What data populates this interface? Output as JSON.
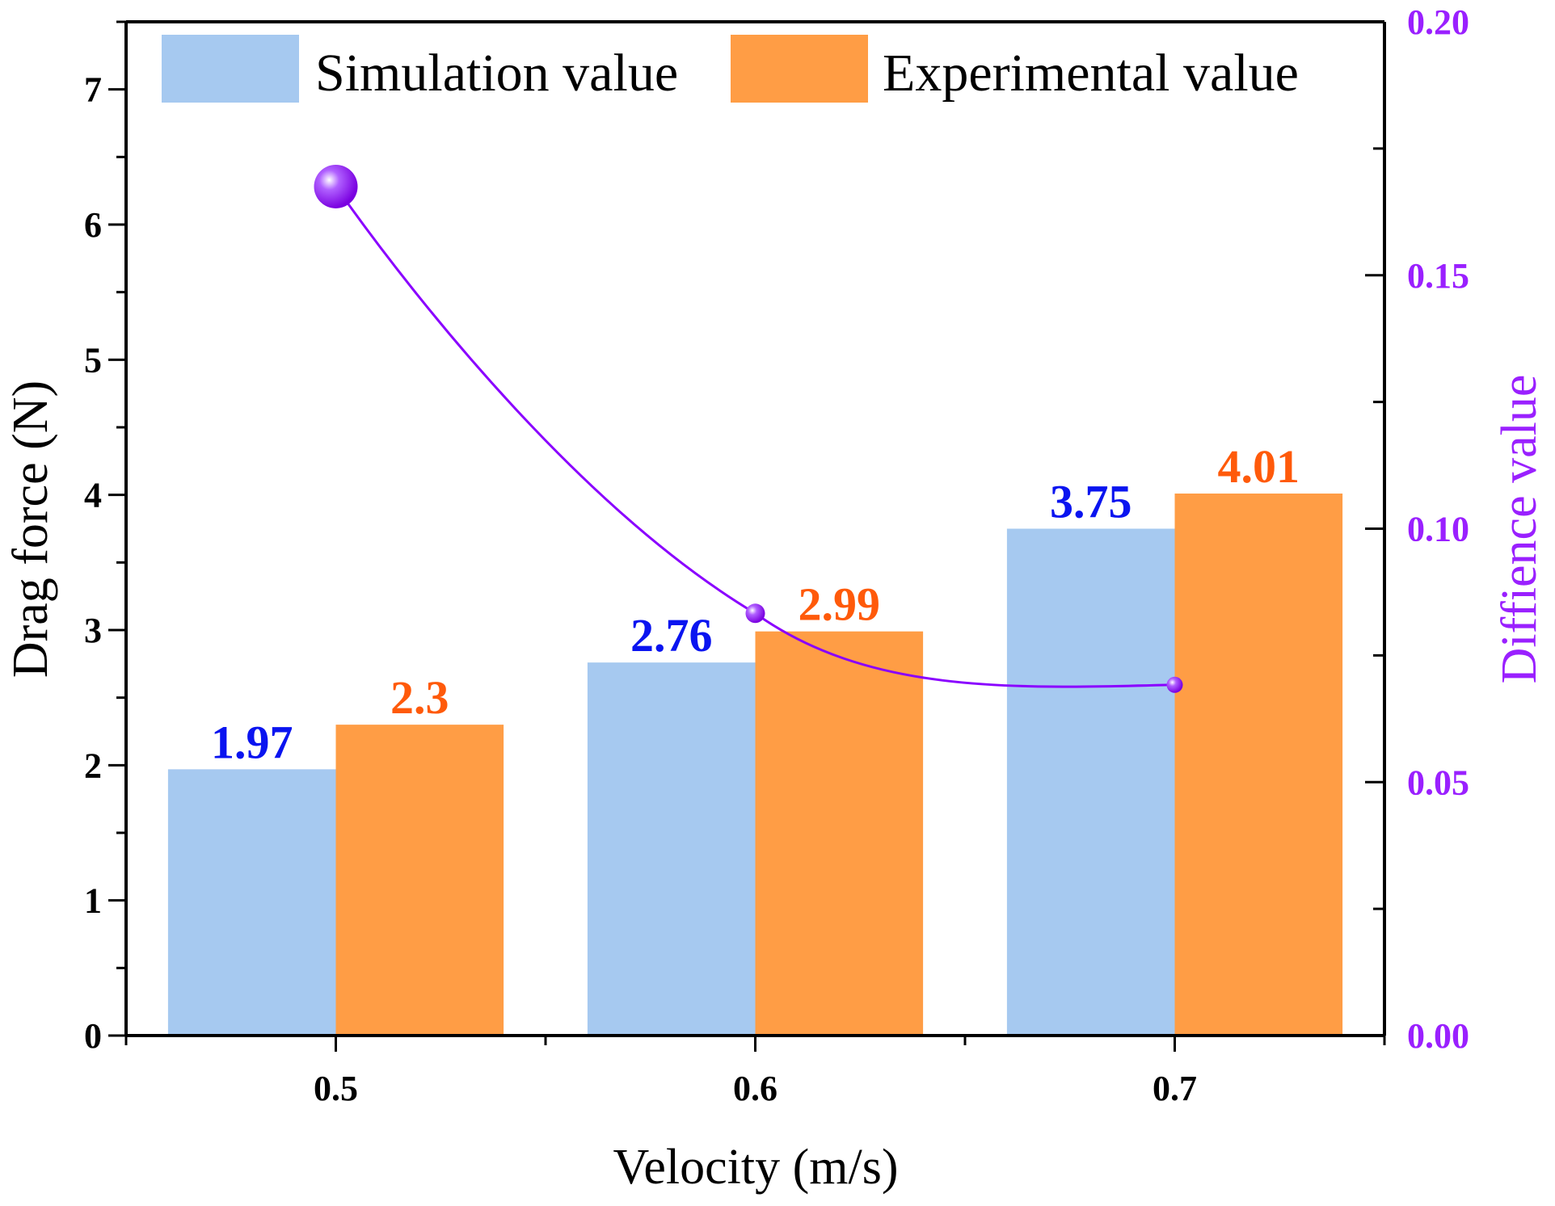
{
  "chart_data": {
    "type": "bar",
    "title": "",
    "xlabel": "Velocity (m/s)",
    "ylabel": "Drag force (N)",
    "y2label": "Diffience value",
    "categories": [
      "0.5",
      "0.6",
      "0.7"
    ],
    "x": [
      0.5,
      0.6,
      0.7
    ],
    "xlim": [
      0.45,
      0.75
    ],
    "ylim": [
      0,
      7.5
    ],
    "y2lim": [
      0,
      0.2
    ],
    "yticks": [
      "0",
      "1",
      "2",
      "3",
      "4",
      "5",
      "6",
      "7"
    ],
    "y2ticks": [
      "0.00",
      "0.05",
      "0.10",
      "0.15",
      "0.20"
    ],
    "legend_position": "top",
    "series": [
      {
        "name": "Simulation value",
        "type": "bar",
        "axis": "left",
        "values": [
          1.97,
          2.76,
          3.75
        ],
        "labels": [
          "1.97",
          "2.76",
          "3.75"
        ],
        "color": "#a6c9f0",
        "label_color": "#0a14f0"
      },
      {
        "name": "Experimental value",
        "type": "bar",
        "axis": "left",
        "values": [
          2.3,
          2.99,
          4.01
        ],
        "labels": [
          "2.3",
          "2.99",
          "4.01"
        ],
        "color": "#ff9d45",
        "label_color": "#ff5a0a"
      },
      {
        "name": "Diffience value",
        "type": "line",
        "axis": "right",
        "values": [
          0.1675,
          0.0833,
          0.0692
        ],
        "color": "#8a00ff"
      }
    ]
  }
}
